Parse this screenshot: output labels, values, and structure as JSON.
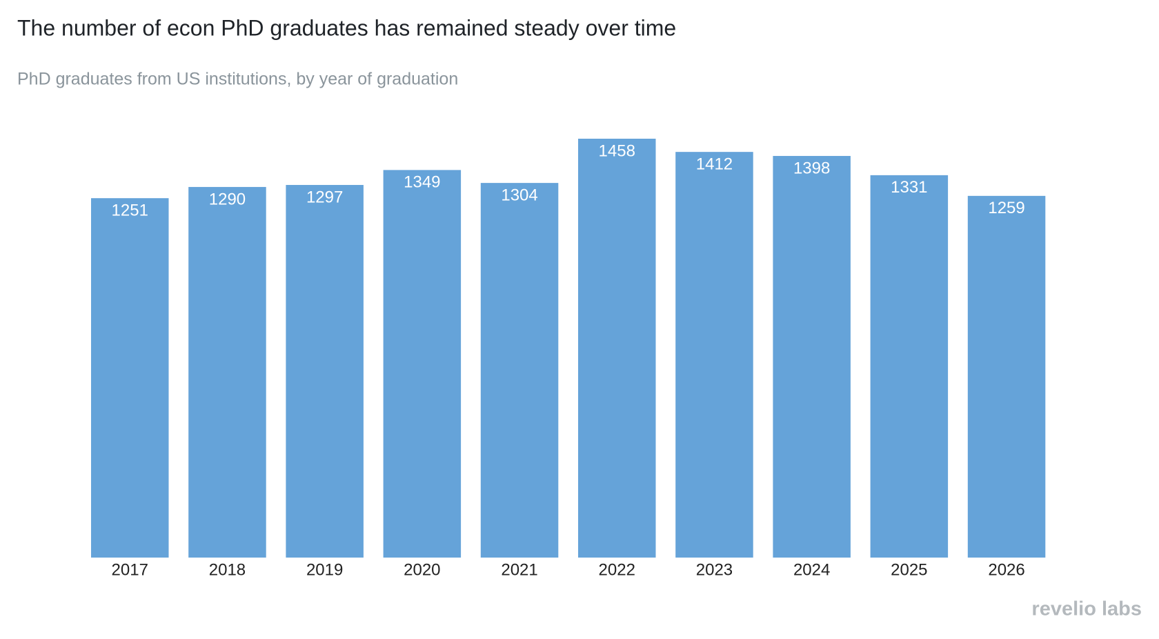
{
  "chart_data": {
    "type": "bar",
    "title": "The number of econ PhD graduates has remained steady over time",
    "subtitle": "PhD graduates from US institutions, by year of graduation",
    "categories": [
      "2017",
      "2018",
      "2019",
      "2020",
      "2021",
      "2022",
      "2023",
      "2024",
      "2025",
      "2026"
    ],
    "values": [
      1251,
      1290,
      1297,
      1349,
      1304,
      1458,
      1412,
      1398,
      1331,
      1259
    ],
    "color": "#65a3d9"
  },
  "brand": "revelio labs"
}
